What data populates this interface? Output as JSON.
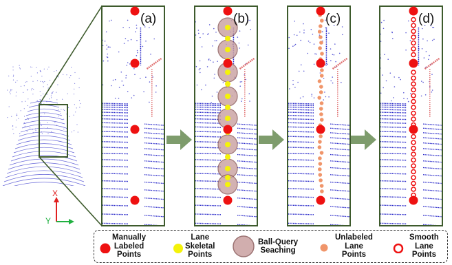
{
  "panels": [
    {
      "id": "a",
      "label": "(a)"
    },
    {
      "id": "b",
      "label": "(b)"
    },
    {
      "id": "c",
      "label": "(c)"
    },
    {
      "id": "d",
      "label": "(d)"
    }
  ],
  "axes": {
    "x_label": "X",
    "y_label": "Y"
  },
  "legend": [
    {
      "key": "manual",
      "label": "Manually\nLabeled\nPoints",
      "color": "#ee1111"
    },
    {
      "key": "skeletal",
      "label": "Lane\nSkeletal\nPoints",
      "color": "#f4f20a"
    },
    {
      "key": "ballquery",
      "label": "Ball-Query\nSeaching",
      "color": "#c9a0a0"
    },
    {
      "key": "unlabeled",
      "label": "Unlabeled\nLane\nPoints",
      "color": "#f0956a"
    },
    {
      "key": "smooth",
      "label": "Smooth\nLane\nPoints",
      "color": "#ee1111"
    }
  ],
  "colors": {
    "frame": "#3d5a2c",
    "arrow": "#7e9c6c",
    "lidar": "#2525c8",
    "curb": "#e07070"
  }
}
